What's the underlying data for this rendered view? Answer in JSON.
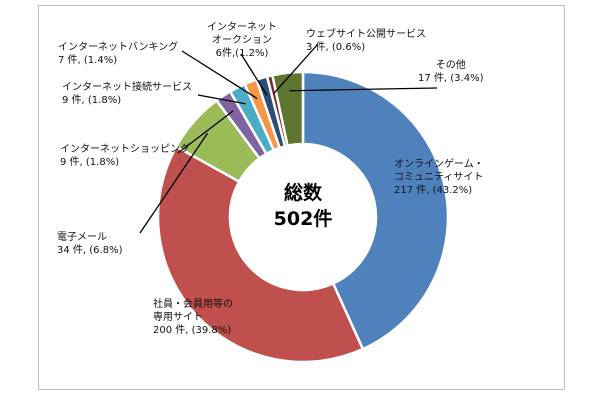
{
  "chart_data": {
    "type": "pie",
    "title": "",
    "center_label": [
      "総数",
      "502件"
    ],
    "slices": [
      {
        "name": "オンラインゲーム・\nコミュニティサイト",
        "value": 217,
        "value_label": "217 件, (43.2%)",
        "color": "#4f81bd"
      },
      {
        "name": "社員・会員用等の\n専用サイト",
        "value": 200,
        "value_label": "200 件, (39.8%)",
        "color": "#c0504d"
      },
      {
        "name": "電子メール",
        "value": 34,
        "value_label": "34 件, (6.8%)",
        "color": "#9bbb59"
      },
      {
        "name": "インターネットショッピング",
        "value": 9,
        "value_label": "9 件, (1.8%)",
        "color": "#8064a2"
      },
      {
        "name": "インターネット接続サービス",
        "value": 9,
        "value_label": "9 件, (1.8%)",
        "color": "#4bacc6"
      },
      {
        "name": "インターネットバンキング",
        "value": 7,
        "value_label": "7 件, (1.4%)",
        "color": "#f79646"
      },
      {
        "name": "インターネット\nオークション",
        "value": 6,
        "value_label": "6件,(1.2%)",
        "color": "#2c4d75"
      },
      {
        "name": "ウェブサイト公開サービス",
        "value": 3,
        "value_label": "3 件, (0.6%)",
        "color": "#772c2a"
      },
      {
        "name": "その他",
        "value": 17,
        "value_label": "17 件, (3.4%)",
        "color": "#5f7530"
      }
    ]
  }
}
